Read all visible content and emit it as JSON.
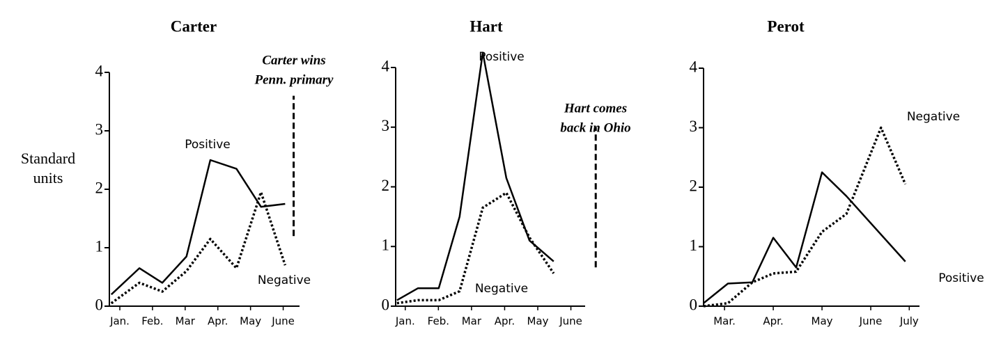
{
  "chart_data": [
    {
      "type": "line",
      "title": "Carter",
      "ylabel": "Standard units",
      "xlim": [
        0.68,
        6.5
      ],
      "ylim": [
        0,
        4
      ],
      "xticks": [
        {
          "value": 1,
          "label": "Jan."
        },
        {
          "value": 2,
          "label": "Feb."
        },
        {
          "value": 3,
          "label": "Mar"
        },
        {
          "value": 4,
          "label": "Apr."
        },
        {
          "value": 5,
          "label": "May"
        },
        {
          "value": 6,
          "label": "June"
        }
      ],
      "yticks": [
        0,
        1,
        2,
        3,
        4
      ],
      "series": [
        {
          "name": "Positive",
          "style": "solid",
          "color": "#000",
          "x": [
            0.74,
            1.6,
            2.3,
            3.04,
            3.77,
            4.57,
            5.32,
            6.06
          ],
          "values": [
            0.2,
            0.65,
            0.4,
            0.85,
            2.5,
            2.35,
            1.7,
            1.75
          ]
        },
        {
          "name": "Negative",
          "style": "dotted",
          "color": "#000",
          "x": [
            0.74,
            1.6,
            2.3,
            3.04,
            3.77,
            4.57,
            5.32,
            6.06
          ],
          "values": [
            0.05,
            0.4,
            0.25,
            0.6,
            1.15,
            0.65,
            1.95,
            0.7
          ]
        }
      ],
      "annotation": [
        "Carter wins",
        "Penn. primary"
      ],
      "event_line": {
        "x": 6.32,
        "ymin": 1.2,
        "ymax": 3.6
      }
    },
    {
      "type": "line",
      "title": "Hart",
      "xlim": [
        0.71,
        6.43
      ],
      "ylim": [
        0,
        4
      ],
      "xticks": [
        {
          "value": 1,
          "label": "Jan."
        },
        {
          "value": 2,
          "label": "Feb."
        },
        {
          "value": 3,
          "label": "Mar"
        },
        {
          "value": 4,
          "label": "Apr."
        },
        {
          "value": 5,
          "label": "May"
        },
        {
          "value": 6,
          "label": "June"
        }
      ],
      "yticks": [
        0,
        1,
        2,
        3,
        4
      ],
      "series": [
        {
          "name": "Positive",
          "style": "solid",
          "color": "#000",
          "x": [
            0.75,
            1.38,
            2.01,
            2.64,
            3.34,
            4.05,
            4.75,
            5.48
          ],
          "values": [
            0.1,
            0.3,
            0.3,
            1.5,
            4.25,
            2.15,
            1.1,
            0.75
          ]
        },
        {
          "name": "Negative",
          "style": "dotted",
          "color": "#000",
          "x": [
            0.75,
            1.38,
            2.01,
            2.64,
            3.34,
            4.05,
            4.75,
            5.48
          ],
          "values": [
            0.05,
            0.1,
            0.1,
            0.25,
            1.65,
            1.9,
            1.15,
            0.55
          ]
        }
      ],
      "annotation": [
        "Hart comes",
        "back in Ohio"
      ],
      "event_line": {
        "x": 6.75,
        "ymin": 0.65,
        "ymax": 3.0
      }
    },
    {
      "type": "line",
      "title": "Perot",
      "xlim": [
        2.57,
        7.0
      ],
      "ylim": [
        0,
        4
      ],
      "xticks": [
        {
          "value": 3,
          "label": "Mar."
        },
        {
          "value": 4,
          "label": "Apr."
        },
        {
          "value": 5,
          "label": "May"
        },
        {
          "value": 6,
          "label": "June"
        },
        {
          "value": 6.79,
          "label": "July"
        }
      ],
      "yticks": [
        0,
        1,
        2,
        3,
        4
      ],
      "series": [
        {
          "name": "Positive",
          "style": "solid",
          "color": "#000",
          "x": [
            2.57,
            3.07,
            3.57,
            4.0,
            4.47,
            5.0,
            5.5,
            6.71
          ],
          "values": [
            0.05,
            0.38,
            0.4,
            1.15,
            0.65,
            2.25,
            1.85,
            0.75
          ]
        },
        {
          "name": "Negative",
          "style": "dotted",
          "color": "#000",
          "x": [
            2.57,
            3.07,
            3.57,
            4.0,
            4.47,
            5.0,
            5.5,
            6.21,
            6.71
          ],
          "values": [
            0.0,
            0.05,
            0.4,
            0.55,
            0.58,
            1.25,
            1.55,
            3.0,
            2.05
          ]
        }
      ]
    }
  ]
}
